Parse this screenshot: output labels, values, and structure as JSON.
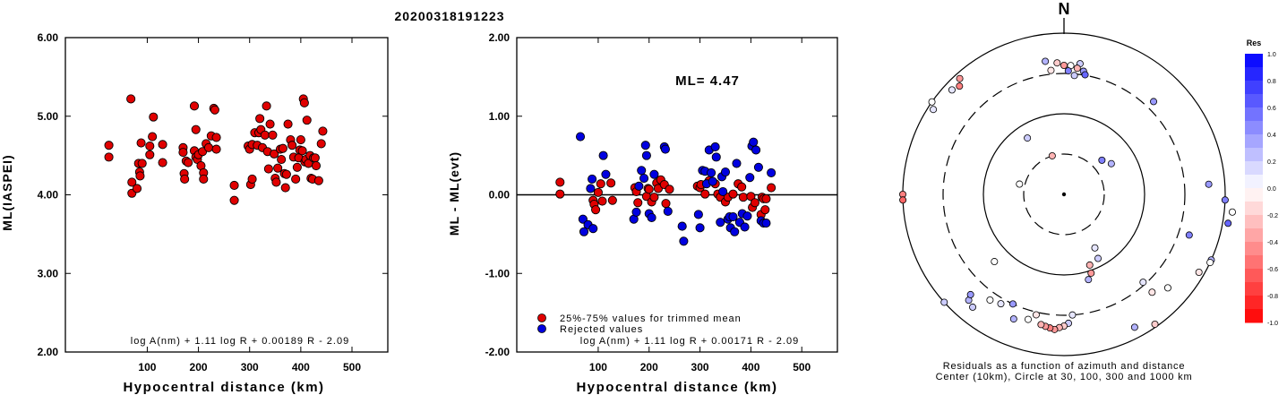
{
  "figure_title": "20200318191223",
  "chart_data": [
    {
      "type": "scatter",
      "xlabel": "Hypocentral distance (km)",
      "ylabel": "ML(IASPEI)",
      "xlim": [
        -60,
        570
      ],
      "ylim": [
        2.0,
        6.0
      ],
      "xticks": [
        "100",
        "200",
        "300",
        "400",
        "500"
      ],
      "yticks": [
        "2.00",
        "3.00",
        "4.00",
        "5.00",
        "6.00"
      ],
      "annotation": "log A(nm) + 1.11 log R + 0.00189 R - 2.09",
      "color": "#e00000",
      "points": [
        [
          25,
          4.63
        ],
        [
          25,
          4.48
        ],
        [
          68,
          5.22
        ],
        [
          70,
          4.16
        ],
        [
          70,
          4.02
        ],
        [
          80,
          4.08
        ],
        [
          83,
          4.4
        ],
        [
          85,
          4.29
        ],
        [
          86,
          4.24
        ],
        [
          88,
          4.66
        ],
        [
          90,
          4.4
        ],
        [
          105,
          4.62
        ],
        [
          105,
          4.51
        ],
        [
          110,
          4.74
        ],
        [
          112,
          4.99
        ],
        [
          130,
          4.64
        ],
        [
          130,
          4.41
        ],
        [
          170,
          4.6
        ],
        [
          170,
          4.54
        ],
        [
          172,
          4.27
        ],
        [
          173,
          4.2
        ],
        [
          176,
          4.43
        ],
        [
          180,
          4.41
        ],
        [
          192,
          5.13
        ],
        [
          192,
          4.56
        ],
        [
          195,
          4.83
        ],
        [
          195,
          4.48
        ],
        [
          198,
          4.45
        ],
        [
          200,
          4.51
        ],
        [
          205,
          4.37
        ],
        [
          208,
          4.55
        ],
        [
          210,
          4.28
        ],
        [
          210,
          4.2
        ],
        [
          215,
          4.65
        ],
        [
          220,
          4.6
        ],
        [
          225,
          4.75
        ],
        [
          230,
          5.1
        ],
        [
          232,
          5.08
        ],
        [
          235,
          4.58
        ],
        [
          235,
          4.73
        ],
        [
          270,
          4.12
        ],
        [
          270,
          3.93
        ],
        [
          297,
          4.62
        ],
        [
          300,
          4.58
        ],
        [
          302,
          4.13
        ],
        [
          305,
          4.64
        ],
        [
          305,
          4.2
        ],
        [
          310,
          4.79
        ],
        [
          315,
          4.63
        ],
        [
          318,
          4.79
        ],
        [
          320,
          4.97
        ],
        [
          322,
          4.83
        ],
        [
          325,
          4.6
        ],
        [
          330,
          4.76
        ],
        [
          333,
          5.13
        ],
        [
          335,
          4.55
        ],
        [
          337,
          4.33
        ],
        [
          340,
          4.9
        ],
        [
          345,
          4.76
        ],
        [
          348,
          4.52
        ],
        [
          350,
          4.21
        ],
        [
          352,
          4.16
        ],
        [
          355,
          4.34
        ],
        [
          360,
          4.58
        ],
        [
          362,
          4.45
        ],
        [
          365,
          4.59
        ],
        [
          368,
          4.27
        ],
        [
          370,
          4.09
        ],
        [
          372,
          4.26
        ],
        [
          375,
          4.9
        ],
        [
          380,
          4.7
        ],
        [
          383,
          4.63
        ],
        [
          386,
          4.48
        ],
        [
          390,
          4.2
        ],
        [
          393,
          4.35
        ],
        [
          396,
          4.47
        ],
        [
          398,
          4.57
        ],
        [
          400,
          4.7
        ],
        [
          403,
          4.56
        ],
        [
          405,
          5.22
        ],
        [
          407,
          5.17
        ],
        [
          408,
          4.42
        ],
        [
          410,
          4.45
        ],
        [
          412,
          4.95
        ],
        [
          415,
          4.4
        ],
        [
          418,
          4.5
        ],
        [
          420,
          4.21
        ],
        [
          423,
          4.2
        ],
        [
          425,
          4.47
        ],
        [
          428,
          4.47
        ],
        [
          430,
          4.37
        ],
        [
          435,
          4.18
        ],
        [
          440,
          4.65
        ],
        [
          443,
          4.81
        ]
      ]
    },
    {
      "type": "scatter",
      "xlabel": "Hypocentral distance (km)",
      "ylabel": "ML - ML(evt)",
      "xlim": [
        -60,
        570
      ],
      "ylim": [
        -2.0,
        2.0
      ],
      "xticks": [
        "100",
        "200",
        "300",
        "400",
        "500"
      ],
      "yticks": [
        "-2.00",
        "-1.00",
        "0.00",
        "1.00",
        "2.00"
      ],
      "value_label": "ML= 4.47",
      "legend": [
        {
          "label": "25%-75% values for trimmed mean",
          "color": "#e00000"
        },
        {
          "label": "Rejected values",
          "color": "#0000e0"
        }
      ],
      "annotation": "log A(nm) + 1.11 log R + 0.00171 R - 2.09",
      "series": [
        {
          "name": "25%-75% values for trimmed mean",
          "color": "#e00000",
          "points": [
            [
              25,
              0.16
            ],
            [
              25,
              0.01
            ],
            [
              90,
              -0.07
            ],
            [
              92,
              -0.12
            ],
            [
              95,
              -0.19
            ],
            [
              100,
              0.03
            ],
            [
              105,
              0.14
            ],
            [
              108,
              -0.08
            ],
            [
              125,
              0.15
            ],
            [
              128,
              -0.07
            ],
            [
              172,
              0.09
            ],
            [
              175,
              0.04
            ],
            [
              178,
              -0.1
            ],
            [
              195,
              -0.02
            ],
            [
              198,
              0.08
            ],
            [
              200,
              0.07
            ],
            [
              205,
              -0.09
            ],
            [
              210,
              -0.03
            ],
            [
              215,
              0.15
            ],
            [
              218,
              0.08
            ],
            [
              223,
              0.19
            ],
            [
              230,
              0.13
            ],
            [
              233,
              -0.11
            ],
            [
              240,
              0.07
            ],
            [
              295,
              0.11
            ],
            [
              300,
              0.09
            ],
            [
              302,
              0.13
            ],
            [
              310,
              0.01
            ],
            [
              318,
              0.18
            ],
            [
              330,
              0.14
            ],
            [
              335,
              0.01
            ],
            [
              340,
              -0.03
            ],
            [
              350,
              -0.09
            ],
            [
              355,
              -0.03
            ],
            [
              365,
              0.01
            ],
            [
              375,
              0.14
            ],
            [
              382,
              0.1
            ],
            [
              385,
              -0.03
            ],
            [
              400,
              -0.02
            ],
            [
              403,
              -0.16
            ],
            [
              408,
              -0.1
            ],
            [
              420,
              -0.25
            ],
            [
              422,
              -0.03
            ],
            [
              425,
              -0.05
            ],
            [
              428,
              -0.19
            ],
            [
              430,
              -0.05
            ],
            [
              440,
              0.09
            ]
          ]
        },
        {
          "name": "Rejected values",
          "color": "#0000e0",
          "points": [
            [
              65,
              0.74
            ],
            [
              70,
              -0.31
            ],
            [
              72,
              -0.47
            ],
            [
              80,
              -0.38
            ],
            [
              85,
              0.08
            ],
            [
              88,
              0.2
            ],
            [
              90,
              -0.43
            ],
            [
              110,
              0.5
            ],
            [
              115,
              0.26
            ],
            [
              170,
              -0.31
            ],
            [
              175,
              -0.22
            ],
            [
              180,
              0.11
            ],
            [
              185,
              0.31
            ],
            [
              190,
              0.21
            ],
            [
              193,
              0.63
            ],
            [
              195,
              0.5
            ],
            [
              200,
              -0.24
            ],
            [
              205,
              -0.29
            ],
            [
              210,
              0.26
            ],
            [
              230,
              0.61
            ],
            [
              232,
              0.58
            ],
            [
              237,
              -0.21
            ],
            [
              265,
              -0.4
            ],
            [
              268,
              -0.59
            ],
            [
              297,
              -0.25
            ],
            [
              300,
              -0.42
            ],
            [
              305,
              0.31
            ],
            [
              310,
              0.3
            ],
            [
              313,
              0.14
            ],
            [
              318,
              0.57
            ],
            [
              322,
              0.28
            ],
            [
              325,
              0.17
            ],
            [
              330,
              0.61
            ],
            [
              332,
              0.48
            ],
            [
              340,
              -0.35
            ],
            [
              343,
              0.23
            ],
            [
              345,
              0.04
            ],
            [
              350,
              0.29
            ],
            [
              355,
              -0.31
            ],
            [
              358,
              -0.28
            ],
            [
              360,
              -0.42
            ],
            [
              365,
              -0.28
            ],
            [
              368,
              -0.47
            ],
            [
              372,
              0.4
            ],
            [
              378,
              -0.35
            ],
            [
              383,
              -0.24
            ],
            [
              388,
              -0.41
            ],
            [
              393,
              -0.27
            ],
            [
              398,
              0.22
            ],
            [
              402,
              0.62
            ],
            [
              405,
              0.67
            ],
            [
              410,
              0.57
            ],
            [
              415,
              0.35
            ],
            [
              420,
              -0.33
            ],
            [
              425,
              -0.36
            ],
            [
              430,
              -0.36
            ],
            [
              440,
              0.28
            ]
          ]
        }
      ]
    },
    {
      "type": "polar_scatter",
      "north_label": "N",
      "caption_line1": "Residuals as a function of azimuth and distance",
      "caption_line2": "Center (10km), Circle at 30, 100, 300 and 1000 km",
      "colorbar_title": "Res",
      "colorbar_ticks": [
        "1.0",
        "0.8",
        "0.6",
        "0.4",
        "0.2",
        "0.0",
        "-0.2",
        "-0.4",
        "-0.6",
        "-0.8",
        "-1.0"
      ],
      "stations": [
        [
          -8,
          250,
          0.3
        ],
        [
          -3,
          245,
          -0.2
        ],
        [
          0,
          240,
          -0.4
        ],
        [
          3,
          240,
          0.0
        ],
        [
          7,
          245,
          0.2
        ],
        [
          6,
          236,
          -0.3
        ],
        [
          2,
          230,
          0.5
        ],
        [
          9,
          232,
          0.4
        ],
        [
          -6,
          232,
          -0.1
        ],
        [
          5,
          222,
          0.2
        ],
        [
          10,
          226,
          0.6
        ],
        [
          -42,
          290,
          -0.4
        ],
        [
          -44,
          280,
          -0.5
        ],
        [
          -55,
          300,
          0.0
        ],
        [
          -57,
          290,
          0.1
        ],
        [
          -33,
          125,
          0.2
        ],
        [
          -17,
          75,
          -0.3
        ],
        [
          -90,
          300,
          -0.5
        ],
        [
          -92,
          300,
          -0.6
        ],
        [
          -77,
          85,
          0.0
        ],
        [
          -47,
          285,
          0.1
        ],
        [
          44,
          240,
          0.4
        ],
        [
          57,
          105,
          0.3
        ],
        [
          48,
          95,
          0.5
        ],
        [
          86,
          270,
          0.4
        ],
        [
          92,
          300,
          0.5
        ],
        [
          100,
          310,
          0.6
        ],
        [
          120,
          290,
          -0.1
        ],
        [
          114,
          300,
          0.3
        ],
        [
          96,
          315,
          0.0
        ],
        [
          108,
          245,
          0.5
        ],
        [
          115,
          300,
          0.0
        ],
        [
          132,
          260,
          0.0
        ],
        [
          138,
          245,
          -0.1
        ],
        [
          150,
          115,
          0.1
        ],
        [
          152,
          135,
          0.2
        ],
        [
          160,
          140,
          -0.3
        ],
        [
          161,
          155,
          -0.4
        ],
        [
          164,
          165,
          0.3
        ],
        [
          176,
          225,
          0.1
        ],
        [
          178,
          240,
          0.2
        ],
        [
          180,
          245,
          -0.2
        ],
        [
          182,
          248,
          -0.3
        ],
        [
          184,
          252,
          -0.4
        ],
        [
          186,
          250,
          -0.5
        ],
        [
          188,
          248,
          -0.4
        ],
        [
          190,
          246,
          -0.3
        ],
        [
          193,
          230,
          -0.1
        ],
        [
          196,
          242,
          0.0
        ],
        [
          202,
          250,
          0.3
        ],
        [
          205,
          225,
          0.4
        ],
        [
          210,
          235,
          0.1
        ],
        [
          215,
          240,
          0.0
        ],
        [
          219,
          270,
          0.2
        ],
        [
          222,
          265,
          0.3
        ],
        [
          145,
          295,
          -0.2
        ],
        [
          152,
          280,
          0.3
        ],
        [
          138,
          220,
          0.1
        ],
        [
          223,
          255,
          0.4
        ],
        [
          226,
          180,
          0.0
        ],
        [
          228,
          300,
          0.2
        ]
      ]
    }
  ]
}
